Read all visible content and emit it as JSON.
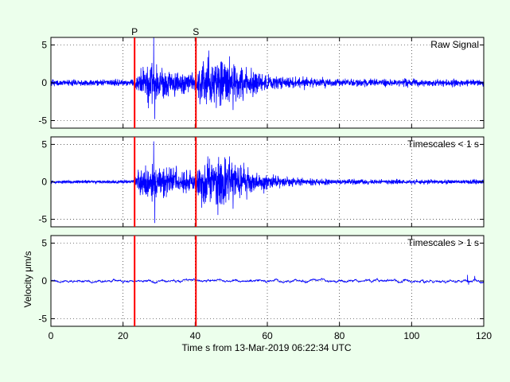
{
  "chart_data": {
    "type": "line",
    "xlabel": "Time s from 13-Mar-2019 06:22:34 UTC",
    "ylabel": "Velocity μm/s",
    "xlim": [
      0,
      120
    ],
    "ylim": [
      -6,
      6
    ],
    "x_ticks": [
      0,
      20,
      40,
      60,
      80,
      100,
      120
    ],
    "y_ticks": [
      -5,
      0,
      5
    ],
    "grid": true,
    "markers": [
      {
        "label": "P",
        "x": 23.2,
        "color": "#ff0000"
      },
      {
        "label": "S",
        "x": 40.2,
        "color": "#ff0000"
      }
    ],
    "series_color": "#0000ff",
    "panels": [
      {
        "title": "Raw Signal",
        "envelope": [
          {
            "t": 0,
            "amp": 0.35
          },
          {
            "t": 23,
            "amp": 0.35
          },
          {
            "t": 24,
            "amp": 1.4
          },
          {
            "t": 28,
            "amp": 2.6
          },
          {
            "t": 29,
            "amp": 2.0
          },
          {
            "t": 34,
            "amp": 1.5
          },
          {
            "t": 40,
            "amp": 1.1
          },
          {
            "t": 42,
            "amp": 2.8
          },
          {
            "t": 50,
            "amp": 2.7
          },
          {
            "t": 56,
            "amp": 1.3
          },
          {
            "t": 65,
            "amp": 0.7
          },
          {
            "t": 80,
            "amp": 0.45
          },
          {
            "t": 120,
            "amp": 0.4
          }
        ],
        "peaks": [
          {
            "t": 28.5,
            "v": 6.0
          },
          {
            "t": 28.8,
            "v": -4.8
          },
          {
            "t": 43.5,
            "v": 3.4
          },
          {
            "t": 49.5,
            "v": 3.5
          },
          {
            "t": 50.5,
            "v": -3.6
          }
        ]
      },
      {
        "title": "Timescales < 1 s",
        "envelope": [
          {
            "t": 0,
            "amp": 0.2
          },
          {
            "t": 23,
            "amp": 0.2
          },
          {
            "t": 24,
            "amp": 1.4
          },
          {
            "t": 28,
            "amp": 2.6
          },
          {
            "t": 29,
            "amp": 2.0
          },
          {
            "t": 34,
            "amp": 1.5
          },
          {
            "t": 40,
            "amp": 1.1
          },
          {
            "t": 42,
            "amp": 2.8
          },
          {
            "t": 50,
            "amp": 2.7
          },
          {
            "t": 56,
            "amp": 1.3
          },
          {
            "t": 65,
            "amp": 0.6
          },
          {
            "t": 80,
            "amp": 0.3
          },
          {
            "t": 120,
            "amp": 0.25
          }
        ],
        "peaks": [
          {
            "t": 28.5,
            "v": 5.4
          },
          {
            "t": 28.8,
            "v": -5.5
          },
          {
            "t": 43.5,
            "v": 3.4
          },
          {
            "t": 49.5,
            "v": 3.4
          },
          {
            "t": 50.5,
            "v": -3.6
          }
        ]
      },
      {
        "title": "Timescales > 1 s",
        "envelope": [
          {
            "t": 0,
            "amp": 0.3
          },
          {
            "t": 120,
            "amp": 0.35
          }
        ],
        "peaks": [
          {
            "t": 115.5,
            "v": 0.8
          },
          {
            "t": 117.5,
            "v": 0.65
          },
          {
            "t": 115.8,
            "v": -0.5
          }
        ]
      }
    ]
  }
}
